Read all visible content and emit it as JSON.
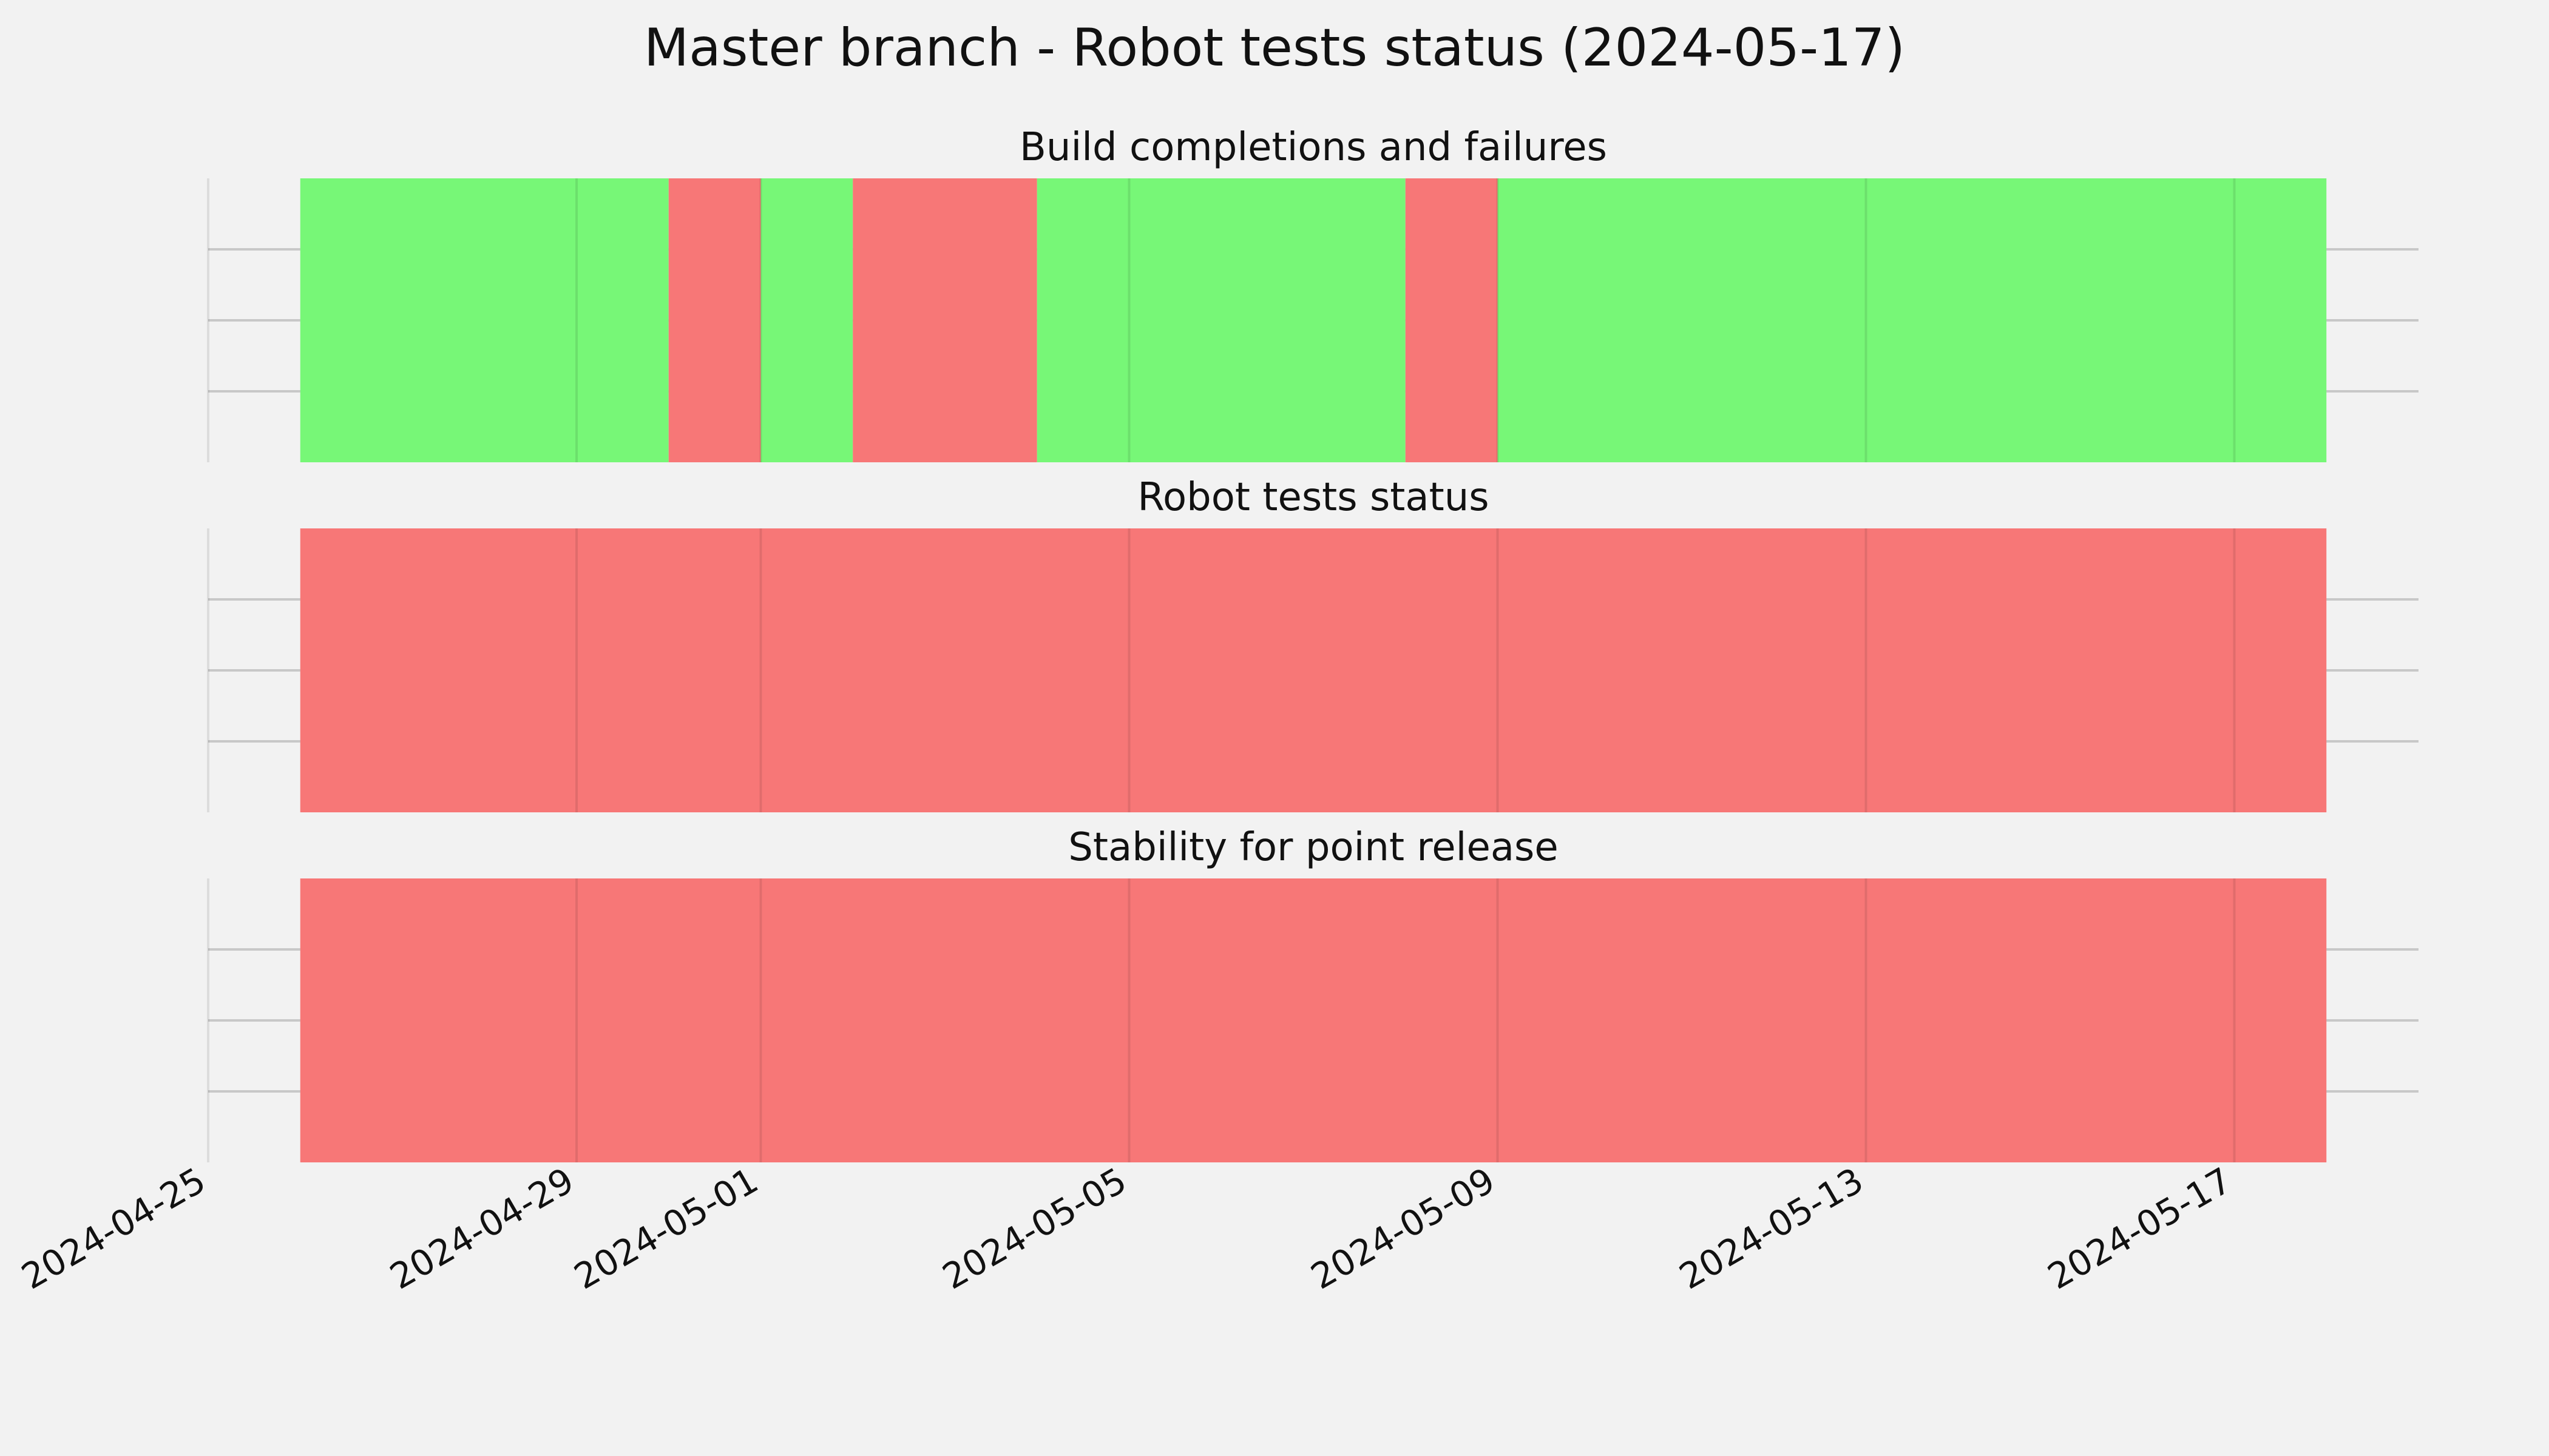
{
  "chart_data": {
    "type": "timeline",
    "title": "Master branch - Robot tests status (2024-05-17)",
    "x_ticks": [
      "2024-04-25",
      "2024-04-29",
      "2024-05-01",
      "2024-05-05",
      "2024-05-09",
      "2024-05-13",
      "2024-05-17"
    ],
    "xlim": [
      "2024-04-25",
      "2024-05-19"
    ],
    "grid": true,
    "colors": {
      "pass": "#77f777",
      "fail": "#f77777",
      "background": "#f2f2f2"
    },
    "panels": [
      {
        "title": "Build completions and failures",
        "segments": [
          {
            "start": "2024-04-26",
            "end": "2024-04-30",
            "status": "pass"
          },
          {
            "start": "2024-04-30",
            "end": "2024-05-01",
            "status": "fail"
          },
          {
            "start": "2024-05-01",
            "end": "2024-05-02",
            "status": "pass"
          },
          {
            "start": "2024-05-02",
            "end": "2024-05-04",
            "status": "fail"
          },
          {
            "start": "2024-05-04",
            "end": "2024-05-08",
            "status": "pass"
          },
          {
            "start": "2024-05-08",
            "end": "2024-05-09",
            "status": "fail"
          },
          {
            "start": "2024-05-09",
            "end": "2024-05-18",
            "status": "pass"
          }
        ]
      },
      {
        "title": "Robot tests status",
        "segments": [
          {
            "start": "2024-04-26",
            "end": "2024-05-18",
            "status": "fail"
          }
        ]
      },
      {
        "title": "Stability for point release",
        "segments": [
          {
            "start": "2024-04-26",
            "end": "2024-05-18",
            "status": "fail"
          }
        ]
      }
    ]
  }
}
